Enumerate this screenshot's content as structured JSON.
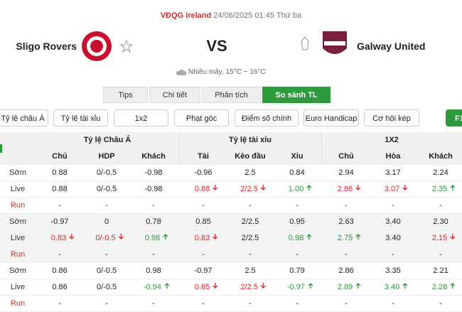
{
  "header": {
    "league": "VĐQG Ireland",
    "datetime": "24/06/2025 01:45 Thứ ba"
  },
  "match": {
    "home": "Sligo Rovers",
    "vs": "VS",
    "away": "Galway United",
    "weather": "Nhiều mây, 15°C ~ 16°C"
  },
  "tabs": [
    "Tips",
    "Chi tiết",
    "Phân tích",
    "So sánh TL"
  ],
  "active_tab": 3,
  "filters": [
    "Tỷ lệ châu Á",
    "Tỷ lệ tài xỉu",
    "1x2",
    "Phạt góc",
    "Điểm số chính xác",
    "Euro Handicap",
    "Cơ hội kép",
    "F1"
  ],
  "table": {
    "groups": [
      "Tỷ lệ Châu Á",
      "Tỷ lệ tài xỉu",
      "1X2"
    ],
    "columns": [
      "Chủ",
      "HDP",
      "Khách",
      "Tài",
      "Kèo đầu",
      "Xỉu",
      "Chủ",
      "Hòa",
      "Khách"
    ],
    "rows": [
      {
        "label": "Sớm",
        "group": 0,
        "cells": [
          "0.88",
          "0/-0.5",
          "-0.98",
          "-0.96",
          "2.5",
          "0.84",
          "2.94",
          "3.17",
          "2.24"
        ]
      },
      {
        "label": "Live",
        "group": 0,
        "cells": [
          "0.88",
          "0/-0.5",
          "-0.98",
          {
            "text": "0.88",
            "trend": "down"
          },
          {
            "text": "2/2.5",
            "trend": "down"
          },
          {
            "text": "1.00",
            "trend": "up"
          },
          {
            "text": "2.86",
            "trend": "down"
          },
          {
            "text": "3.07",
            "trend": "down"
          },
          {
            "text": "2.35",
            "trend": "up"
          }
        ]
      },
      {
        "label": "Run",
        "group": 0,
        "cells": [
          "-",
          "-",
          "-",
          "-",
          "-",
          "-",
          "-",
          "-",
          "-"
        ]
      },
      {
        "label": "Sớm",
        "group": 1,
        "cells": [
          "-0.97",
          "0",
          "0.78",
          "0.85",
          "2/2.5",
          "0.95",
          "2.63",
          "3.40",
          "2.30"
        ]
      },
      {
        "label": "Live",
        "group": 1,
        "cells": [
          {
            "text": "0.83",
            "trend": "down"
          },
          {
            "text": "0/-0.5",
            "trend": "down"
          },
          {
            "text": "0.98",
            "trend": "up"
          },
          {
            "text": "0.83",
            "trend": "down"
          },
          "2/2.5",
          {
            "text": "0.98",
            "trend": "up"
          },
          {
            "text": "2.75",
            "trend": "up"
          },
          "3.40",
          {
            "text": "2.15",
            "trend": "down"
          }
        ]
      },
      {
        "label": "Run",
        "group": 1,
        "cells": [
          "-",
          "-",
          "-",
          "-",
          "-",
          "-",
          "-",
          "-",
          "-"
        ]
      },
      {
        "label": "Sớm",
        "group": 2,
        "cells": [
          "0.86",
          "0/-0.5",
          "0.98",
          "-0.97",
          "2.5",
          "0.79",
          "2.86",
          "3.35",
          "2.21"
        ]
      },
      {
        "label": "Live",
        "group": 2,
        "cells": [
          "0.86",
          "0/-0.5",
          {
            "text": "-0.94",
            "trend": "up"
          },
          {
            "text": "0.85",
            "trend": "down"
          },
          {
            "text": "2/2.5",
            "trend": "down"
          },
          {
            "text": "-0.97",
            "trend": "up"
          },
          {
            "text": "2.89",
            "trend": "up"
          },
          {
            "text": "3.40",
            "trend": "up"
          },
          {
            "text": "2.28",
            "trend": "up"
          }
        ]
      },
      {
        "label": "Run",
        "group": 2,
        "cells": [
          "-",
          "-",
          "-",
          "-",
          "-",
          "-",
          "-",
          "-",
          "-"
        ]
      }
    ]
  }
}
